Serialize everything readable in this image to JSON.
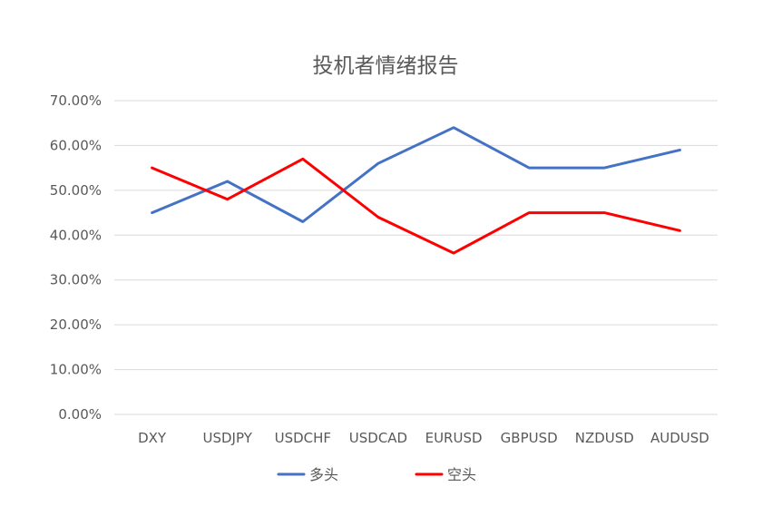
{
  "chart_data": {
    "type": "line",
    "title": "投机者情绪报告",
    "xlabel": "",
    "ylabel": "",
    "categories": [
      "DXY",
      "USDJPY",
      "USDCHF",
      "USDCAD",
      "EURUSD",
      "GBPUSD",
      "NZDUSD",
      "AUDUSD"
    ],
    "y_tick_labels": [
      "0.00%",
      "10.00%",
      "20.00%",
      "30.00%",
      "40.00%",
      "50.00%",
      "60.00%",
      "70.00%"
    ],
    "ylim": [
      0,
      0.7
    ],
    "y_ticks": [
      0,
      0.1,
      0.2,
      0.3,
      0.4,
      0.5,
      0.6,
      0.7
    ],
    "grid": true,
    "legend_position": "bottom",
    "series": [
      {
        "name": "多头",
        "color": "#4472C4",
        "values": [
          0.45,
          0.52,
          0.43,
          0.56,
          0.64,
          0.55,
          0.55,
          0.59
        ]
      },
      {
        "name": "空头",
        "color": "#FF0000",
        "values": [
          0.55,
          0.48,
          0.57,
          0.44,
          0.36,
          0.45,
          0.45,
          0.41
        ]
      }
    ],
    "gridline_color": "#D9D9D9"
  }
}
